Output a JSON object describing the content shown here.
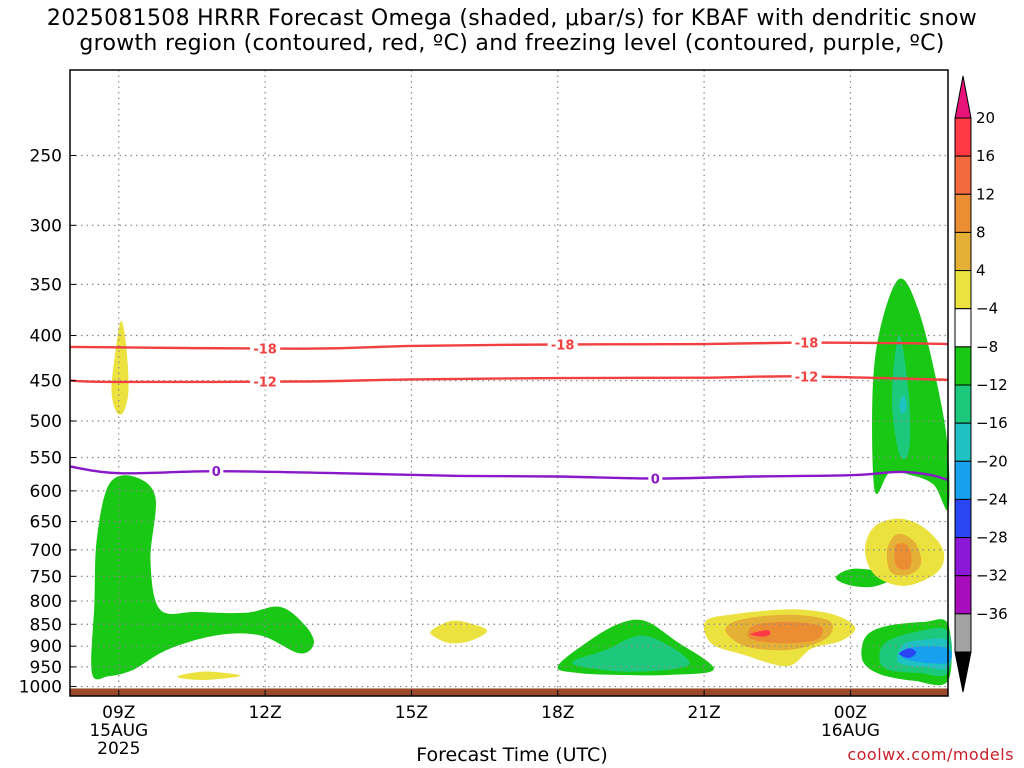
{
  "title": "2025081508 HRRR Forecast Omega (shaded, μbar/s) for KBAF with dendritic snow\ngrowth region (contoured, red, ºC) and freezing level (contoured, purple, ºC)",
  "credit": "coolwx.com/models",
  "chart_data": {
    "type": "contour",
    "title": "2025081508 HRRR Forecast Omega (shaded, μbar/s) for KBAF with dendritic snow growth region (contoured, red, ºC) and freezing level (contoured, purple, ºC)",
    "xlabel": "Forecast Time (UTC)",
    "ylabel": "",
    "x_ticks": [
      {
        "hour": 9,
        "label": "09Z",
        "sub": [
          "15AUG",
          "2025"
        ]
      },
      {
        "hour": 12,
        "label": "12Z",
        "sub": []
      },
      {
        "hour": 15,
        "label": "15Z",
        "sub": []
      },
      {
        "hour": 18,
        "label": "18Z",
        "sub": []
      },
      {
        "hour": 21,
        "label": "21Z",
        "sub": []
      },
      {
        "hour": 24,
        "label": "00Z",
        "sub": [
          "16AUG"
        ]
      }
    ],
    "xlim_hours": [
      8,
      26
    ],
    "y_scale": "log-pressure",
    "ylim_hpa": [
      1025,
      200
    ],
    "y_ticks": [
      250,
      300,
      350,
      400,
      450,
      500,
      550,
      600,
      650,
      700,
      750,
      800,
      850,
      900,
      950,
      1000
    ],
    "grid": "dotted",
    "colorbar": {
      "labels": [
        20,
        16,
        12,
        8,
        4,
        -4,
        -8,
        -12,
        -16,
        -20,
        -24,
        -28,
        -32,
        -36
      ],
      "colors": [
        "#ff3a47",
        "#f26b3f",
        "#eb8d33",
        "#e5b036",
        "#ece23f",
        "#ffffff",
        "#18c814",
        "#1cc87c",
        "#1fc2c2",
        "#17a0ee",
        "#2a45f2",
        "#8a18d6",
        "#a80dbc",
        "#a3a3a3"
      ],
      "top_color": "#e8147a",
      "bottom_color": "#000000"
    },
    "ground": {
      "color": "#9a4a28",
      "from_hpa": 1005
    },
    "temperature_contours": [
      {
        "label": "-18",
        "color": "#f04040",
        "points": [
          [
            8,
            412
          ],
          [
            12.8,
            414
          ],
          [
            15,
            411
          ],
          [
            18,
            409.5
          ],
          [
            21,
            409
          ],
          [
            23,
            407.5
          ],
          [
            25,
            408
          ],
          [
            26,
            409
          ]
        ],
        "label_at_hours": [
          12,
          18.1,
          23.1
        ]
      },
      {
        "label": "-12",
        "color": "#f04040",
        "points": [
          [
            8,
            450
          ],
          [
            9,
            451.5
          ],
          [
            12.8,
            451
          ],
          [
            15,
            448.5
          ],
          [
            18,
            447
          ],
          [
            21,
            446.5
          ],
          [
            23,
            445
          ],
          [
            26,
            449
          ]
        ],
        "label_at_hours": [
          12,
          23.1
        ]
      },
      {
        "label": "0",
        "color": "#8818c8",
        "points": [
          [
            8,
            563
          ],
          [
            9,
            573
          ],
          [
            11,
            570
          ],
          [
            13.5,
            573
          ],
          [
            16,
            577
          ],
          [
            18,
            578
          ],
          [
            20,
            581
          ],
          [
            22,
            578
          ],
          [
            24,
            576
          ],
          [
            25,
            571
          ],
          [
            25.6,
            575
          ],
          [
            26,
            583
          ]
        ],
        "label_at_hours": [
          11,
          20
        ]
      }
    ],
    "omega_regions": [
      {
        "value_range": [
          -8,
          -4
        ],
        "color": "#18c814",
        "points": [
          [
            8.45,
            965
          ],
          [
            8.5,
            805
          ],
          [
            8.55,
            680
          ],
          [
            8.8,
            590
          ],
          [
            9.3,
            578
          ],
          [
            9.75,
            610
          ],
          [
            9.65,
            720
          ],
          [
            9.85,
            818
          ],
          [
            10.6,
            823
          ],
          [
            11.6,
            825
          ],
          [
            12.3,
            812
          ],
          [
            12.8,
            850
          ],
          [
            13.0,
            893
          ],
          [
            12.7,
            917
          ],
          [
            11.9,
            875
          ],
          [
            11.0,
            875
          ],
          [
            10.0,
            908
          ],
          [
            9.3,
            957
          ],
          [
            8.8,
            973
          ]
        ]
      },
      {
        "value_range": [
          -8,
          -4
        ],
        "color": "#18c814",
        "points": [
          [
            18.0,
            948
          ],
          [
            18.7,
            883
          ],
          [
            19.3,
            847
          ],
          [
            19.8,
            843
          ],
          [
            20.4,
            886
          ],
          [
            21.2,
            955
          ],
          [
            20.3,
            970
          ],
          [
            19.2,
            970
          ],
          [
            18.4,
            965
          ]
        ]
      },
      {
        "value_range": [
          -12,
          -8
        ],
        "color": "#1cc87c",
        "points": [
          [
            18.3,
            942
          ],
          [
            19.0,
            908
          ],
          [
            19.8,
            876
          ],
          [
            20.7,
            942
          ],
          [
            19.5,
            962
          ]
        ]
      },
      {
        "value_range": [
          -8,
          -4
        ],
        "color": "#18c814",
        "points": [
          [
            23.7,
            752
          ],
          [
            24.1,
            735
          ],
          [
            24.9,
            748
          ],
          [
            24.5,
            770
          ],
          [
            24.0,
            768
          ]
        ]
      },
      {
        "value_range": [
          -8,
          -4
        ],
        "color": "#18c814",
        "points": [
          [
            24.5,
            600
          ],
          [
            24.45,
            470
          ],
          [
            24.6,
            395
          ],
          [
            25.0,
            345
          ],
          [
            25.4,
            375
          ],
          [
            25.8,
            460
          ],
          [
            26.0,
            540
          ],
          [
            26.0,
            630
          ],
          [
            25.7,
            590
          ],
          [
            25.2,
            575
          ],
          [
            24.8,
            572
          ]
        ]
      },
      {
        "value_range": [
          -12,
          -8
        ],
        "color": "#1cc87c",
        "points": [
          [
            25.0,
            545
          ],
          [
            24.85,
            470
          ],
          [
            25.0,
            400
          ],
          [
            25.2,
            470
          ],
          [
            25.2,
            540
          ]
        ]
      },
      {
        "value_range": [
          -16,
          -12
        ],
        "color": "#1fc2c2",
        "points": [
          [
            25.05,
            490
          ],
          [
            25.0,
            478
          ],
          [
            25.1,
            468
          ],
          [
            25.15,
            485
          ]
        ]
      },
      {
        "value_range": [
          -8,
          -4
        ],
        "color": "#18c814",
        "points": [
          [
            24.25,
            935
          ],
          [
            24.3,
            880
          ],
          [
            24.7,
            855
          ],
          [
            25.5,
            845
          ],
          [
            26.0,
            850
          ],
          [
            26.0,
            985
          ],
          [
            25.3,
            985
          ],
          [
            24.6,
            968
          ]
        ]
      },
      {
        "value_range": [
          -12,
          -8
        ],
        "color": "#1cc87c",
        "points": [
          [
            24.6,
            935
          ],
          [
            24.7,
            893
          ],
          [
            25.3,
            868
          ],
          [
            26.0,
            865
          ],
          [
            26.0,
            965
          ],
          [
            25.4,
            965
          ],
          [
            24.8,
            958
          ]
        ]
      },
      {
        "value_range": [
          -16,
          -12
        ],
        "color": "#1fc2c2",
        "points": [
          [
            24.95,
            930
          ],
          [
            25.1,
            895
          ],
          [
            25.5,
            885
          ],
          [
            26.0,
            888
          ],
          [
            26.0,
            952
          ],
          [
            25.5,
            950
          ],
          [
            25.1,
            945
          ]
        ]
      },
      {
        "value_range": [
          -20,
          -16
        ],
        "color": "#17a0ee",
        "points": [
          [
            25.05,
            925
          ],
          [
            25.3,
            902
          ],
          [
            26.0,
            905
          ],
          [
            26.0,
            940
          ],
          [
            25.4,
            938
          ]
        ]
      },
      {
        "value_range": [
          -24,
          -20
        ],
        "color": "#2a45f2",
        "points": [
          [
            25.0,
            918
          ],
          [
            25.2,
            905
          ],
          [
            25.35,
            915
          ],
          [
            25.2,
            928
          ]
        ]
      },
      {
        "value_range": [
          4,
          8
        ],
        "color": "#ece23f",
        "points": [
          [
            8.85,
            460
          ],
          [
            8.95,
            410
          ],
          [
            9.05,
            385
          ],
          [
            9.15,
            410
          ],
          [
            9.2,
            460
          ],
          [
            9.1,
            488
          ],
          [
            8.95,
            488
          ]
        ]
      },
      {
        "value_range": [
          4,
          8
        ],
        "color": "#ece23f",
        "points": [
          [
            15.4,
            865
          ],
          [
            15.8,
            843
          ],
          [
            16.2,
            848
          ],
          [
            16.55,
            865
          ],
          [
            16.2,
            888
          ],
          [
            15.8,
            893
          ],
          [
            15.5,
            880
          ]
        ]
      },
      {
        "value_range": [
          4,
          8
        ],
        "color": "#ece23f",
        "points": [
          [
            10.2,
            975
          ],
          [
            10.5,
            965
          ],
          [
            10.9,
            962
          ],
          [
            11.5,
            972
          ],
          [
            10.9,
            982
          ],
          [
            10.5,
            982
          ]
        ]
      },
      {
        "value_range": [
          4,
          8
        ],
        "color": "#ece23f",
        "points": [
          [
            24.4,
            735
          ],
          [
            24.3,
            695
          ],
          [
            24.5,
            658
          ],
          [
            25.0,
            645
          ],
          [
            25.5,
            660
          ],
          [
            25.9,
            700
          ],
          [
            25.8,
            740
          ],
          [
            25.2,
            768
          ],
          [
            24.7,
            760
          ]
        ]
      },
      {
        "value_range": [
          8,
          12
        ],
        "color": "#e5b036",
        "points": [
          [
            24.8,
            738
          ],
          [
            24.75,
            700
          ],
          [
            24.9,
            675
          ],
          [
            25.1,
            673
          ],
          [
            25.35,
            690
          ],
          [
            25.45,
            725
          ],
          [
            25.25,
            745
          ],
          [
            25.0,
            748
          ]
        ]
      },
      {
        "value_range": [
          12,
          16
        ],
        "color": "#eb8d33",
        "points": [
          [
            24.95,
            732
          ],
          [
            24.9,
            702
          ],
          [
            24.95,
            690
          ],
          [
            25.15,
            690
          ],
          [
            25.25,
            710
          ],
          [
            25.2,
            735
          ]
        ]
      },
      {
        "value_range": [
          4,
          8
        ],
        "color": "#ece23f",
        "points": [
          [
            21.0,
            862
          ],
          [
            21.1,
            838
          ],
          [
            21.6,
            828
          ],
          [
            22.3,
            820
          ],
          [
            23.0,
            818
          ],
          [
            23.7,
            830
          ],
          [
            24.1,
            858
          ],
          [
            23.8,
            888
          ],
          [
            23.2,
            906
          ],
          [
            22.7,
            948
          ],
          [
            21.8,
            920
          ],
          [
            21.2,
            898
          ]
        ]
      },
      {
        "value_range": [
          8,
          12
        ],
        "color": "#e5b036",
        "points": [
          [
            21.45,
            868
          ],
          [
            21.6,
            845
          ],
          [
            22.2,
            832
          ],
          [
            23.0,
            830
          ],
          [
            23.6,
            845
          ],
          [
            23.5,
            882
          ],
          [
            22.8,
            908
          ],
          [
            21.9,
            902
          ]
        ]
      },
      {
        "value_range": [
          12,
          16
        ],
        "color": "#eb8d33",
        "points": [
          [
            21.9,
            868
          ],
          [
            22.1,
            850
          ],
          [
            22.8,
            845
          ],
          [
            23.4,
            855
          ],
          [
            23.3,
            885
          ],
          [
            22.6,
            893
          ],
          [
            22.0,
            885
          ]
        ]
      },
      {
        "value_range": [
          16,
          20
        ],
        "color": "#ff3a47",
        "points": [
          [
            21.95,
            872
          ],
          [
            22.3,
            863
          ],
          [
            22.35,
            873
          ],
          [
            22.2,
            878
          ]
        ]
      }
    ]
  }
}
